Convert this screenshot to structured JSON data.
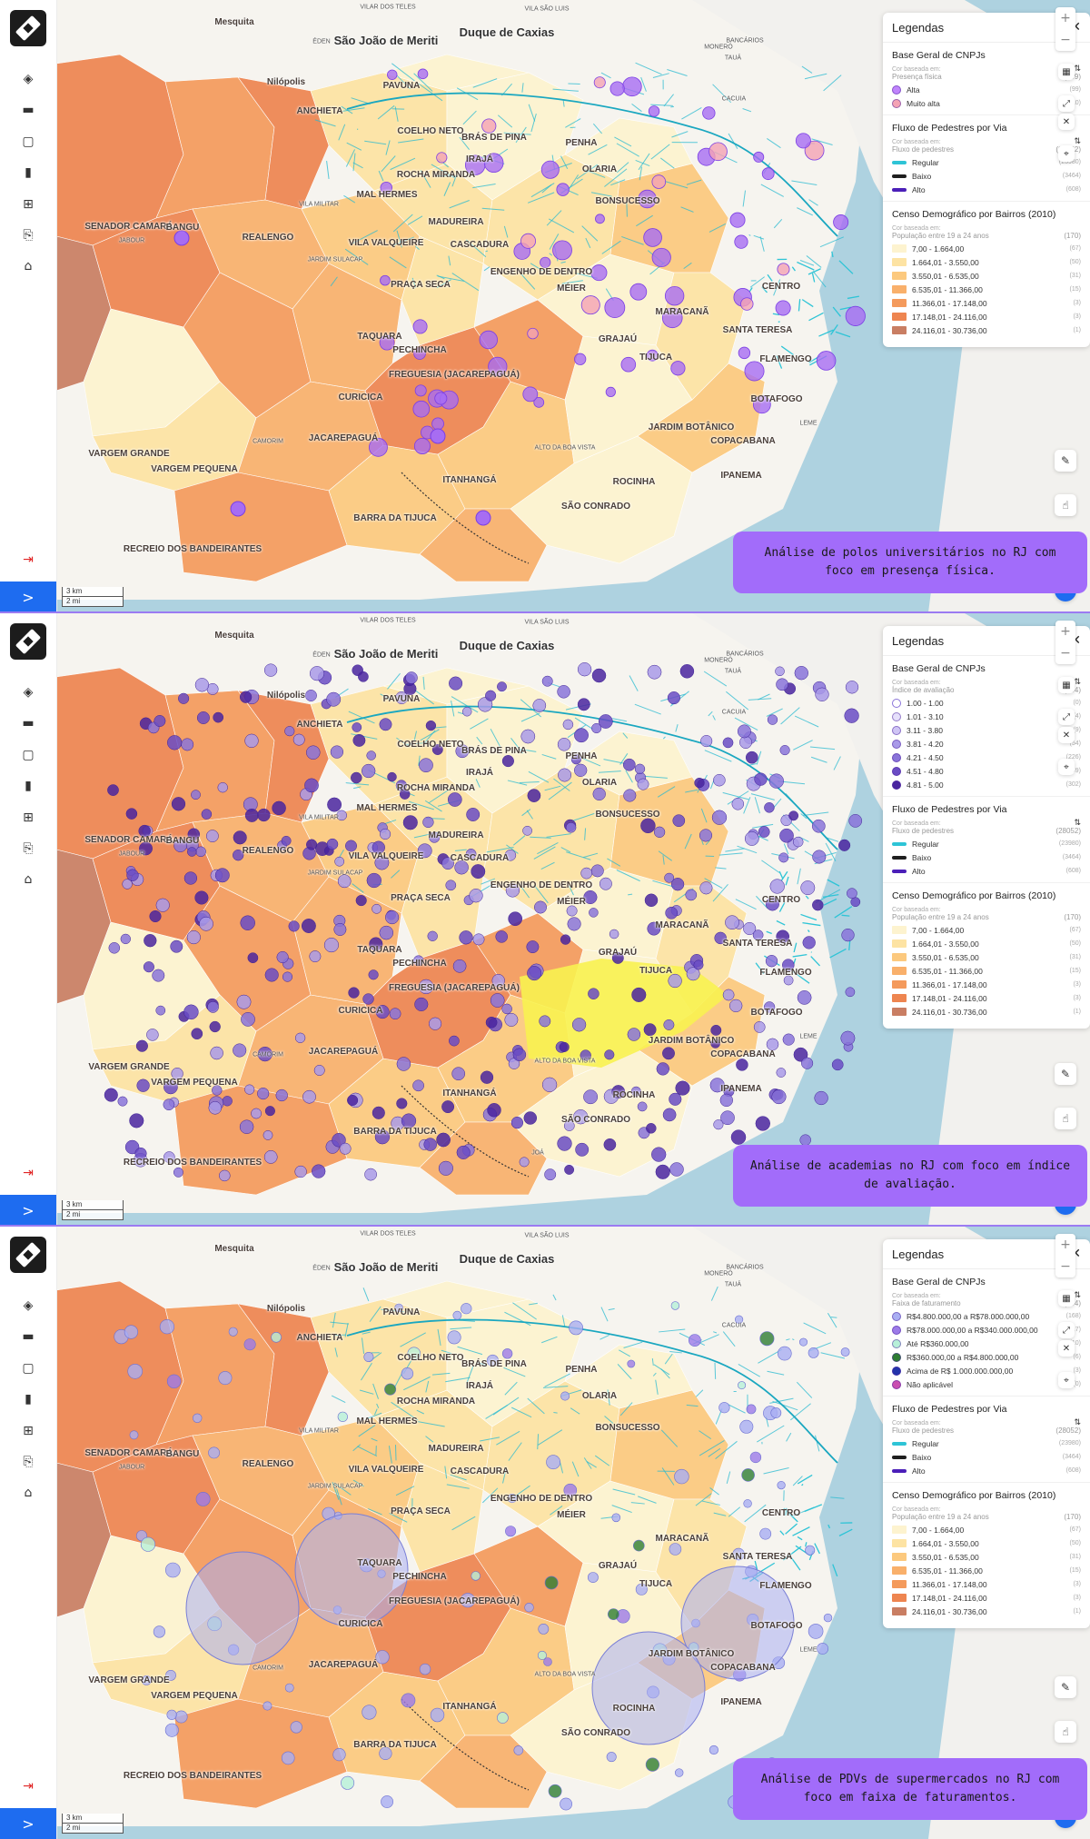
{
  "panels": [
    {
      "caption": "Análise de polos universitários no RJ com foco em presença física.",
      "legend": {
        "title": "Legendas",
        "sections": [
          {
            "title": "Base Geral de CNPJs",
            "based_on_label": "Cor baseada em:",
            "attribute": "Presença física",
            "total": "(109)",
            "items": [
              {
                "label": "Alta",
                "count": "(99)",
                "color": "#c084fc"
              },
              {
                "label": "Muito alta",
                "count": "(10)",
                "color": "#f4a3b4"
              }
            ]
          },
          {
            "title": "Fluxo de Pedestres por Via",
            "based_on_label": "Cor baseada em:",
            "attribute": "Fluxo de pedestres",
            "total": "(28052)",
            "items": [
              {
                "label": "Regular",
                "count": "(23980)",
                "color": "#2ec4d6"
              },
              {
                "label": "Baixo",
                "count": "(3464)",
                "color": "#1f1f1f"
              },
              {
                "label": "Alto",
                "count": "(608)",
                "color": "#4b1fb8"
              }
            ]
          },
          {
            "title": "Censo Demográfico por Bairros (2010)",
            "based_on_label": "Cor baseada em:",
            "attribute": "População entre 19 a 24 anos",
            "total": "(170)",
            "items": [
              {
                "label": "7,00 - 1.664,00",
                "count": "(67)",
                "color": "#fdf3cf"
              },
              {
                "label": "1.664,01 - 3.550,00",
                "count": "(50)",
                "color": "#fde3a3"
              },
              {
                "label": "3.550,01 - 6.535,00",
                "count": "(31)",
                "color": "#fcc97e"
              },
              {
                "label": "6.535,01 - 11.366,00",
                "count": "(15)",
                "color": "#f9b06b"
              },
              {
                "label": "11.366,01 - 17.148,00",
                "count": "(3)",
                "color": "#f49a5c"
              },
              {
                "label": "17.148,01 - 24.116,00",
                "count": "(3)",
                "color": "#ee8550"
              },
              {
                "label": "24.116,01 - 30.736,00",
                "count": "(1)",
                "color": "#c97e63"
              }
            ]
          }
        ]
      }
    },
    {
      "caption": "Análise de academias no RJ com foco em índice de avaliação.",
      "legend": {
        "title": "Legendas",
        "sections": [
          {
            "title": "Base Geral de CNPJs",
            "based_on_label": "Cor baseada em:",
            "attribute": "Índice de avaliação",
            "total": "(944)",
            "items": [
              {
                "label": "1.00 - 1.00",
                "count": "(0)",
                "color": "#ffffff"
              },
              {
                "label": "1.01 - 3.10",
                "count": "(4)",
                "color": "#e6e0fb"
              },
              {
                "label": "3.11 - 3.80",
                "count": "(9)",
                "color": "#cfc5f5"
              },
              {
                "label": "3.81 - 4.20",
                "count": "(54)",
                "color": "#a99ae8"
              },
              {
                "label": "4.21 - 4.50",
                "count": "(226)",
                "color": "#8a74d9"
              },
              {
                "label": "4.51 - 4.80",
                "count": "(349)",
                "color": "#6a4cc4"
              },
              {
                "label": "4.81 - 5.00",
                "count": "(302)",
                "color": "#4a259f"
              }
            ]
          },
          {
            "title": "Fluxo de Pedestres por Via",
            "based_on_label": "Cor baseada em:",
            "attribute": "Fluxo de pedestres",
            "total": "(28052)",
            "items": [
              {
                "label": "Regular",
                "count": "(23980)",
                "color": "#2ec4d6"
              },
              {
                "label": "Baixo",
                "count": "(3464)",
                "color": "#1f1f1f"
              },
              {
                "label": "Alto",
                "count": "(608)",
                "color": "#4b1fb8"
              }
            ]
          },
          {
            "title": "Censo Demográfico por Bairros (2010)",
            "based_on_label": "Cor baseada em:",
            "attribute": "População entre 19 a 24 anos",
            "total": "(170)",
            "items": [
              {
                "label": "7,00 - 1.664,00",
                "count": "(67)",
                "color": "#fdf3cf"
              },
              {
                "label": "1.664,01 - 3.550,00",
                "count": "(50)",
                "color": "#fde3a3"
              },
              {
                "label": "3.550,01 - 6.535,00",
                "count": "(31)",
                "color": "#fcc97e"
              },
              {
                "label": "6.535,01 - 11.366,00",
                "count": "(15)",
                "color": "#f9b06b"
              },
              {
                "label": "11.366,01 - 17.148,00",
                "count": "(3)",
                "color": "#f49a5c"
              },
              {
                "label": "17.148,01 - 24.116,00",
                "count": "(3)",
                "color": "#ee8550"
              },
              {
                "label": "24.116,01 - 30.736,00",
                "count": "(1)",
                "color": "#c97e63"
              }
            ]
          }
        ]
      }
    },
    {
      "caption": "Análise de PDVs de supermercados no RJ com foco em faixa de faturamentos.",
      "legend": {
        "title": "Legendas",
        "sections": [
          {
            "title": "Base Geral de CNPJs",
            "based_on_label": "Cor baseada em:",
            "attribute": "Faixa de faturamento",
            "total": "(204)",
            "items": [
              {
                "label": "R$4.800.000,00 a R$78.000.000,00",
                "count": "(168)",
                "color": "#a9aef2"
              },
              {
                "label": "R$78.000.000,00 a R$340.000.000,00",
                "count": "(17)",
                "color": "#9c7be8"
              },
              {
                "label": "Até R$360.000,00",
                "count": "(10)",
                "color": "#b7f0d8"
              },
              {
                "label": "R$360.000,00 a R$4.800.000,00",
                "count": "(6)",
                "color": "#2e7d32"
              },
              {
                "label": "Acima de R$ 1.000.000.000,00",
                "count": "(3)",
                "color": "#2233aa"
              },
              {
                "label": "Não aplicável",
                "count": "(0)",
                "color": "#c94fb0"
              }
            ]
          },
          {
            "title": "Fluxo de Pedestres por Via",
            "based_on_label": "Cor baseada em:",
            "attribute": "Fluxo de pedestres",
            "total": "(28052)",
            "items": [
              {
                "label": "Regular",
                "count": "(23980)",
                "color": "#2ec4d6"
              },
              {
                "label": "Baixo",
                "count": "(3464)",
                "color": "#1f1f1f"
              },
              {
                "label": "Alto",
                "count": "(608)",
                "color": "#4b1fb8"
              }
            ]
          },
          {
            "title": "Censo Demográfico por Bairros (2010)",
            "based_on_label": "Cor baseada em:",
            "attribute": "População entre 19 a 24 anos",
            "total": "(170)",
            "items": [
              {
                "label": "7,00 - 1.664,00",
                "count": "(67)",
                "color": "#fdf3cf"
              },
              {
                "label": "1.664,01 - 3.550,00",
                "count": "(50)",
                "color": "#fde3a3"
              },
              {
                "label": "3.550,01 - 6.535,00",
                "count": "(31)",
                "color": "#fcc97e"
              },
              {
                "label": "6.535,01 - 11.366,00",
                "count": "(15)",
                "color": "#f9b06b"
              },
              {
                "label": "11.366,01 - 17.148,00",
                "count": "(3)",
                "color": "#f49a5c"
              },
              {
                "label": "17.148,01 - 24.116,00",
                "count": "(3)",
                "color": "#ee8550"
              },
              {
                "label": "24.116,01 - 30.736,00",
                "count": "(1)",
                "color": "#c97e63"
              }
            ]
          }
        ]
      }
    }
  ],
  "place_names": {
    "mesquita": "Mesquita",
    "eden": "ÉDEN",
    "sao_joao": "São João de Meriti",
    "duque": "Duque de Caxias",
    "vilar": "VILAR DOS TELES",
    "vila_sao_luis": "VILA SÃO LUIS",
    "nilopolis": "Nilópolis",
    "pavuna": "PAVUNA",
    "anchieta": "ANCHIETA",
    "coelho": "COELHO NETO",
    "bras": "BRÁS DE PINA",
    "penha": "PENHA",
    "iraja": "IRAJÁ",
    "rocha": "ROCHA MIRANDA",
    "olaria": "OLARIA",
    "mal_hermes": "MAL HERMES",
    "bonsucesso": "BONSUCESSO",
    "vila_militar": "VILA MILITAR",
    "madureira": "MADUREIRA",
    "senador": "SENADOR CAMARÁ",
    "bangu": "BANGU",
    "realengo": "REALENGO",
    "jabour": "JABOUR",
    "vila_valqueire": "VILA VALQUEIRE",
    "cascadura": "CASCADURA",
    "jardim_sulacap": "JARDIM SULACAP",
    "engenho": "ENGENHO DE DENTRO",
    "meier": "MÉIER",
    "centro": "CENTRO",
    "praca_seca": "PRAÇA SECA",
    "maracana": "MARACANÃ",
    "taquara": "TAQUARA",
    "pechincha": "PECHINCHA",
    "santa_teresa": "SANTA TERESA",
    "grajau": "GRAJAÚ",
    "tijuca": "TIJUCA",
    "freguesia": "FREGUESIA (JACAREPAGUÁ)",
    "flamengo": "FLAMENGO",
    "curicica": "CURICICA",
    "botafogo": "BOTAFOGO",
    "camorim": "CAMORIM",
    "jacarepagua": "JACAREPAGUÁ",
    "jardim_botanico": "JARDIM BOTÂNICO",
    "vargem_grande": "VARGEM GRANDE",
    "vargem_pequena": "VARGEM PEQUENA",
    "alto_boa_vista": "ALTO DA BOA VISTA",
    "copacabana": "COPACABANA",
    "itanhanga": "ITANHANGÁ",
    "rocinha": "ROCINHA",
    "ipanema": "IPANEMA",
    "barra": "BARRA DA TIJUCA",
    "sao_conrado": "SÃO CONRADO",
    "recreio": "RECREIO DOS BANDEIRANTES",
    "leme": "LEME",
    "taua": "TAUÁ",
    "cacuia": "CACUIA",
    "moneró": "MONERÓ",
    "bancarios": "BANCÁRIOS",
    "joa": "JOÁ"
  },
  "scale": {
    "km": "3 km",
    "mi": "2 mi"
  },
  "icons": {
    "logo": "rj-analytics-logo-icon",
    "layers": "layers-icon",
    "folder": "folder-icon",
    "map": "map-icon",
    "chart": "bar-chart-icon",
    "grid": "grid-icon",
    "export": "export-icon",
    "home": "home-icon",
    "logout": "logout-icon",
    "expand": "chevron-right-icon"
  },
  "colors": {
    "sidebar_expand": "#1e6cf0",
    "caption_bg": "#a26cfa",
    "divider": "#9b7bf2",
    "water": "#aed2e0",
    "land": "#f6f4ef"
  }
}
